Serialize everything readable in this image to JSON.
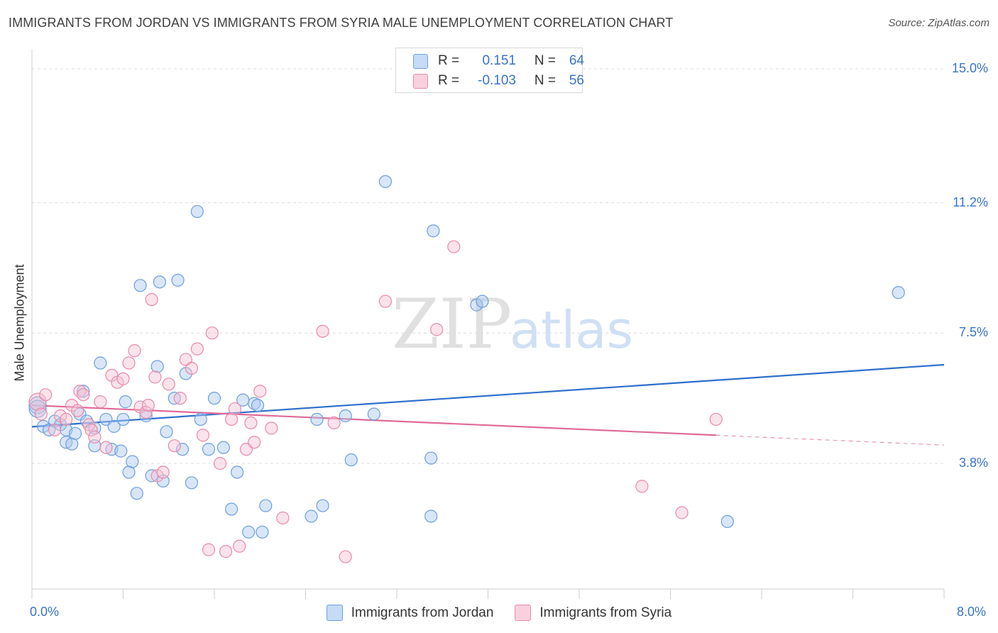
{
  "chart_data": {
    "type": "scatter",
    "title": "IMMIGRANTS FROM JORDAN VS IMMIGRANTS FROM SYRIA MALE UNEMPLOYMENT CORRELATION CHART",
    "source": "Source: ZipAtlas.com",
    "ylabel": "Male Unemployment",
    "xlabel": "",
    "xlim": [
      0,
      8
    ],
    "ylim": [
      0,
      15.5
    ],
    "x_tick_labels": {
      "min": "0.0%",
      "max": "8.0%"
    },
    "y_ticks": [
      {
        "value": 3.8,
        "label": "3.8%"
      },
      {
        "value": 7.5,
        "label": "7.5%"
      },
      {
        "value": 11.2,
        "label": "11.2%"
      },
      {
        "value": 15.0,
        "label": "15.0%"
      }
    ],
    "watermark": {
      "zip": "ZIP",
      "atlas": "atlas"
    },
    "legend": {
      "r_label": "R =",
      "n_label": "N ="
    },
    "series": [
      {
        "name": "Immigrants from Jordan",
        "color": "#a8c8f0",
        "stroke": "#6d9fdc",
        "line_color": "#2f6fcc",
        "r": "0.151",
        "n": "64",
        "trend": {
          "x0": 0.0,
          "y0": 4.84,
          "x1": 8.0,
          "y1": 6.6
        },
        "points": [
          [
            0.05,
            5.45
          ],
          [
            0.05,
            5.35
          ],
          [
            0.1,
            4.85
          ],
          [
            0.15,
            4.75
          ],
          [
            0.2,
            5.0
          ],
          [
            0.25,
            4.9
          ],
          [
            0.3,
            4.75
          ],
          [
            0.3,
            4.4
          ],
          [
            0.35,
            4.35
          ],
          [
            0.38,
            4.65
          ],
          [
            0.42,
            5.2
          ],
          [
            0.45,
            5.85
          ],
          [
            0.48,
            5.0
          ],
          [
            0.55,
            4.8
          ],
          [
            0.55,
            4.3
          ],
          [
            0.6,
            6.65
          ],
          [
            0.65,
            5.05
          ],
          [
            0.7,
            4.2
          ],
          [
            0.72,
            4.85
          ],
          [
            0.78,
            4.15
          ],
          [
            0.8,
            5.05
          ],
          [
            0.82,
            5.55
          ],
          [
            0.85,
            3.55
          ],
          [
            0.88,
            3.85
          ],
          [
            0.92,
            2.95
          ],
          [
            0.95,
            8.85
          ],
          [
            1.0,
            5.15
          ],
          [
            1.05,
            3.45
          ],
          [
            1.1,
            6.55
          ],
          [
            1.12,
            8.95
          ],
          [
            1.15,
            3.3
          ],
          [
            1.18,
            4.7
          ],
          [
            1.25,
            5.65
          ],
          [
            1.28,
            9.0
          ],
          [
            1.32,
            4.2
          ],
          [
            1.35,
            6.35
          ],
          [
            1.4,
            3.25
          ],
          [
            1.45,
            10.95
          ],
          [
            1.48,
            5.05
          ],
          [
            1.55,
            4.2
          ],
          [
            1.6,
            5.65
          ],
          [
            1.68,
            4.25
          ],
          [
            1.75,
            2.5
          ],
          [
            1.8,
            3.55
          ],
          [
            1.85,
            5.6
          ],
          [
            1.9,
            1.85
          ],
          [
            1.95,
            5.5
          ],
          [
            1.98,
            5.45
          ],
          [
            2.02,
            1.85
          ],
          [
            2.05,
            2.6
          ],
          [
            2.45,
            2.3
          ],
          [
            2.5,
            5.05
          ],
          [
            2.55,
            2.6
          ],
          [
            2.75,
            5.15
          ],
          [
            2.8,
            3.9
          ],
          [
            3.0,
            5.2
          ],
          [
            3.1,
            11.8
          ],
          [
            3.5,
            2.3
          ],
          [
            3.5,
            3.95
          ],
          [
            3.52,
            10.4
          ],
          [
            3.9,
            8.3
          ],
          [
            3.95,
            8.4
          ],
          [
            6.1,
            2.15
          ],
          [
            7.6,
            8.65
          ]
        ]
      },
      {
        "name": "Immigrants from Syria",
        "color": "#f7c0d2",
        "stroke": "#e88aaa",
        "line_color": "#e06a98",
        "r": "-0.103",
        "n": "56",
        "trend": {
          "x0": 0.0,
          "y0": 5.45,
          "x1": 6.0,
          "y1": 4.6
        },
        "trend_dash": {
          "x0": 6.0,
          "y0": 4.6,
          "x1": 8.0,
          "y1": 4.32
        },
        "points": [
          [
            0.05,
            5.55
          ],
          [
            0.08,
            5.2
          ],
          [
            0.12,
            5.75
          ],
          [
            0.2,
            4.75
          ],
          [
            0.25,
            5.15
          ],
          [
            0.3,
            5.05
          ],
          [
            0.35,
            5.45
          ],
          [
            0.4,
            5.3
          ],
          [
            0.42,
            5.85
          ],
          [
            0.45,
            5.75
          ],
          [
            0.5,
            4.9
          ],
          [
            0.52,
            4.75
          ],
          [
            0.55,
            4.55
          ],
          [
            0.6,
            5.55
          ],
          [
            0.65,
            4.25
          ],
          [
            0.7,
            6.3
          ],
          [
            0.75,
            6.1
          ],
          [
            0.8,
            6.2
          ],
          [
            0.85,
            6.65
          ],
          [
            0.9,
            7.0
          ],
          [
            0.95,
            5.4
          ],
          [
            1.0,
            5.25
          ],
          [
            1.02,
            5.45
          ],
          [
            1.05,
            8.45
          ],
          [
            1.08,
            6.25
          ],
          [
            1.1,
            3.45
          ],
          [
            1.15,
            3.55
          ],
          [
            1.2,
            6.05
          ],
          [
            1.25,
            4.3
          ],
          [
            1.3,
            5.65
          ],
          [
            1.35,
            6.75
          ],
          [
            1.4,
            6.5
          ],
          [
            1.45,
            7.05
          ],
          [
            1.5,
            4.6
          ],
          [
            1.55,
            1.35
          ],
          [
            1.58,
            7.5
          ],
          [
            1.65,
            3.8
          ],
          [
            1.7,
            1.3
          ],
          [
            1.75,
            5.05
          ],
          [
            1.78,
            5.35
          ],
          [
            1.82,
            1.45
          ],
          [
            1.88,
            4.2
          ],
          [
            1.92,
            4.95
          ],
          [
            1.95,
            4.4
          ],
          [
            2.0,
            5.85
          ],
          [
            2.1,
            4.8
          ],
          [
            2.2,
            2.25
          ],
          [
            2.55,
            7.55
          ],
          [
            2.65,
            4.95
          ],
          [
            2.75,
            1.15
          ],
          [
            3.1,
            8.4
          ],
          [
            3.55,
            7.6
          ],
          [
            3.7,
            9.95
          ],
          [
            5.35,
            3.15
          ],
          [
            5.7,
            2.4
          ],
          [
            6.0,
            5.05
          ]
        ]
      }
    ]
  }
}
